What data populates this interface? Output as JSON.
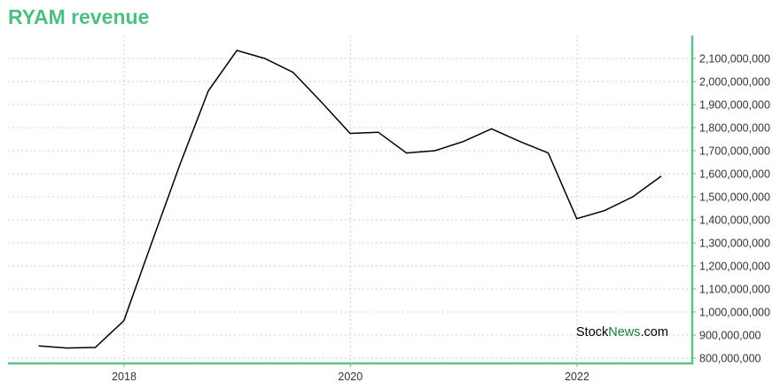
{
  "colors": {
    "title": "#4dbf7f",
    "axis": "#5cc287",
    "grid": "#b9ddc9",
    "line": "#000000",
    "brand_stock": "#000000",
    "brand_news": "#1d7a3d"
  },
  "watermark": {
    "part1": "Stock",
    "part2": "News",
    "part3": ".com"
  },
  "chart_data": {
    "type": "line",
    "title": "RYAM revenue",
    "xlabel": "",
    "ylabel": "",
    "x_ticks": [
      "2018",
      "2020",
      "2022"
    ],
    "y_ticks": [
      "800,000,000",
      "900,000,000",
      "1,000,000,000",
      "1,100,000,000",
      "1,200,000,000",
      "1,300,000,000",
      "1,400,000,000",
      "1,500,000,000",
      "1,600,000,000",
      "1,700,000,000",
      "1,800,000,000",
      "1,900,000,000",
      "2,000,000,000",
      "2,100,000,000"
    ],
    "ylim": [
      800000000,
      2100000000
    ],
    "grid": true,
    "y_axis_position": "right",
    "series": [
      {
        "x": [
          "2017-03-31",
          "2017-06-30",
          "2017-09-30",
          "2017-12-31",
          "2018-03-31",
          "2018-06-30",
          "2018-09-30",
          "2018-12-31",
          "2019-03-31",
          "2019-06-30",
          "2019-09-30",
          "2019-12-31",
          "2020-03-31",
          "2020-06-30",
          "2020-09-30",
          "2020-12-31",
          "2021-03-31",
          "2021-06-30",
          "2021-09-30",
          "2021-12-31",
          "2022-03-31",
          "2022-06-30",
          "2022-09-30"
        ],
        "values": [
          853000000,
          844000000,
          846000000,
          962000000,
          1300000000,
          1640000000,
          1960000000,
          2135000000,
          2100000000,
          2040000000,
          1910000000,
          1775000000,
          1780000000,
          1690000000,
          1700000000,
          1740000000,
          1795000000,
          1740000000,
          1690000000,
          1405000000,
          1440000000,
          1500000000,
          1590000000
        ]
      }
    ]
  }
}
